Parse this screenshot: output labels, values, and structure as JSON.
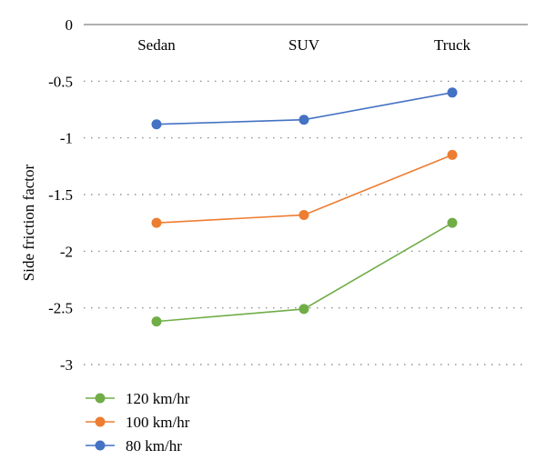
{
  "chart_data": {
    "type": "line",
    "title": "",
    "xlabel": "",
    "ylabel": "Side friction factor",
    "categories": [
      "Sedan",
      "SUV",
      "Truck"
    ],
    "y_ticks": [
      "0",
      "-0.5",
      "-1",
      "-1.5",
      "-2",
      "-2.5",
      "-3"
    ],
    "ylim": [
      -3,
      0
    ],
    "grid": "horizontal dotted",
    "legend_position": "bottom-left",
    "series": [
      {
        "name": "120 km/hr",
        "color": "#70ad47",
        "values": [
          -2.62,
          -2.51,
          -1.75
        ]
      },
      {
        "name": "100 km/hr",
        "color": "#ed7d31",
        "values": [
          -1.75,
          -1.68,
          -1.15
        ]
      },
      {
        "name": "80 km/hr",
        "color": "#4472c4",
        "values": [
          -0.88,
          -0.84,
          -0.6
        ]
      }
    ]
  }
}
